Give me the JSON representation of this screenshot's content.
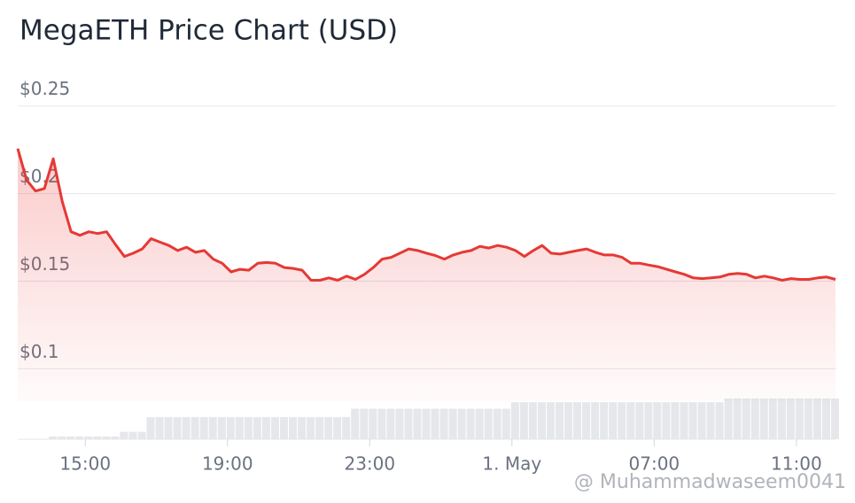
{
  "chart_data": {
    "type": "area-line",
    "title": "MegaETH Price Chart (USD)",
    "watermark": "@ Muhammadwaseem0041",
    "color": "#e53935",
    "grid": true,
    "ylim": [
      0.0815,
      0.2615
    ],
    "yticks": [
      {
        "value": 0.25,
        "label": "$0.25"
      },
      {
        "value": 0.2,
        "label": "$0.2"
      },
      {
        "value": 0.15,
        "label": "$0.15"
      },
      {
        "value": 0.1,
        "label": "$0.1"
      }
    ],
    "xlim": [
      13.1,
      36.1
    ],
    "xticks": [
      {
        "value": 15,
        "label": "15:00"
      },
      {
        "value": 19,
        "label": "19:00"
      },
      {
        "value": 23,
        "label": "23:00"
      },
      {
        "value": 27,
        "label": "1. May"
      },
      {
        "value": 31,
        "label": "07:00"
      },
      {
        "value": 35,
        "label": "11:00"
      }
    ],
    "x": [
      13.1,
      13.35,
      13.6,
      13.85,
      14.1,
      14.35,
      14.6,
      14.85,
      15.1,
      15.35,
      15.6,
      15.85,
      16.1,
      16.35,
      16.6,
      16.85,
      17.1,
      17.35,
      17.6,
      17.85,
      18.1,
      18.35,
      18.6,
      18.85,
      19.1,
      19.35,
      19.6,
      19.85,
      20.1,
      20.35,
      20.6,
      20.85,
      21.1,
      21.35,
      21.6,
      21.85,
      22.1,
      22.35,
      22.6,
      22.85,
      23.1,
      23.35,
      23.6,
      23.85,
      24.1,
      24.35,
      24.6,
      24.85,
      25.1,
      25.35,
      25.6,
      25.85,
      26.1,
      26.35,
      26.6,
      26.85,
      27.1,
      27.35,
      27.6,
      27.85,
      28.1,
      28.35,
      28.6,
      28.85,
      29.1,
      29.35,
      29.6,
      29.85,
      30.1,
      30.35,
      30.6,
      30.85,
      31.1,
      31.35,
      31.6,
      31.85,
      32.1,
      32.35,
      32.6,
      32.85,
      33.1,
      33.35,
      33.6,
      33.85,
      34.1,
      34.35,
      34.6,
      34.85,
      35.1,
      35.35,
      35.6,
      35.85,
      36.1
    ],
    "values": [
      0.2257,
      0.2078,
      0.2015,
      0.2029,
      0.2199,
      0.1956,
      0.1782,
      0.1762,
      0.1782,
      0.1772,
      0.1782,
      0.1709,
      0.1641,
      0.166,
      0.1684,
      0.1743,
      0.1723,
      0.1704,
      0.1675,
      0.1694,
      0.1665,
      0.1675,
      0.1626,
      0.1602,
      0.1553,
      0.1568,
      0.1563,
      0.1602,
      0.1607,
      0.1602,
      0.1578,
      0.1573,
      0.1563,
      0.1505,
      0.1505,
      0.1519,
      0.1505,
      0.1529,
      0.151,
      0.1539,
      0.1578,
      0.1626,
      0.1636,
      0.166,
      0.1684,
      0.1675,
      0.166,
      0.1646,
      0.1626,
      0.165,
      0.1665,
      0.1675,
      0.1699,
      0.1689,
      0.1704,
      0.1694,
      0.1675,
      0.1641,
      0.1675,
      0.1704,
      0.166,
      0.1655,
      0.1665,
      0.1675,
      0.1684,
      0.1665,
      0.165,
      0.165,
      0.1636,
      0.1602,
      0.1602,
      0.1592,
      0.1583,
      0.1568,
      0.1553,
      0.1539,
      0.1519,
      0.1515,
      0.1519,
      0.1524,
      0.1539,
      0.1544,
      0.1539,
      0.1519,
      0.1529,
      0.1519,
      0.1505,
      0.1515,
      0.151,
      0.151,
      0.1519,
      0.1524,
      0.151
    ],
    "volume": [
      0,
      0,
      0,
      0,
      3,
      3,
      3,
      3,
      3,
      3,
      3,
      3,
      8,
      8,
      8,
      24,
      24,
      24,
      24,
      24,
      24,
      24,
      24,
      24,
      24,
      24,
      24,
      24,
      24,
      24,
      24,
      24,
      24,
      24,
      24,
      24,
      24,
      24,
      33,
      33,
      33,
      33,
      33,
      33,
      33,
      33,
      33,
      33,
      33,
      33,
      33,
      33,
      33,
      33,
      33,
      33,
      40,
      40,
      40,
      40,
      40,
      40,
      40,
      40,
      40,
      40,
      40,
      40,
      40,
      40,
      40,
      40,
      40,
      40,
      40,
      40,
      40,
      40,
      40,
      40,
      44,
      44,
      44,
      44,
      44,
      44,
      44,
      44,
      44,
      44,
      44,
      44,
      44
    ]
  }
}
